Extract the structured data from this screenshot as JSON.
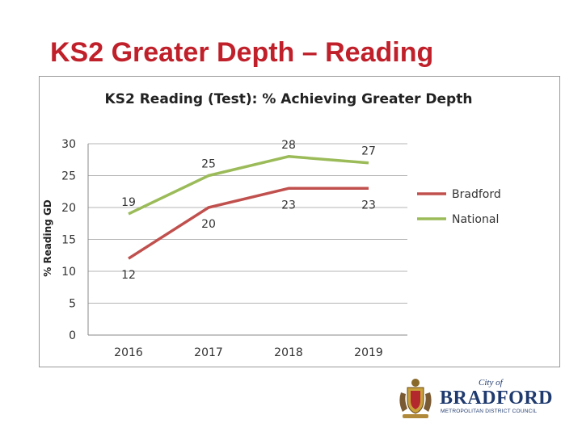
{
  "slide": {
    "title": "KS2 Greater Depth – Reading"
  },
  "chart_data": {
    "type": "line",
    "title": "KS2 Reading (Test): % Achieving Greater Depth",
    "xlabel": "",
    "ylabel": "% Reading GD",
    "categories": [
      "2016",
      "2017",
      "2018",
      "2019"
    ],
    "ylim": [
      0,
      30
    ],
    "yticks": [
      0,
      5,
      10,
      15,
      20,
      25,
      30
    ],
    "grid": true,
    "legend_position": "right",
    "series": [
      {
        "name": "Bradford",
        "values": [
          12,
          20,
          23,
          23
        ],
        "labels": [
          "12",
          "20",
          "23",
          "23"
        ],
        "color": "#c0504d"
      },
      {
        "name": "National",
        "values": [
          19,
          25,
          28,
          27
        ],
        "labels": [
          "19",
          "25",
          "28",
          "27"
        ],
        "color": "#9bbb59"
      }
    ]
  },
  "logo": {
    "city_of": "City of",
    "name": "BRADFORD",
    "subtitle": "METROPOLITAN DISTRICT COUNCIL",
    "colors": {
      "text": "#1f3a6e"
    }
  }
}
